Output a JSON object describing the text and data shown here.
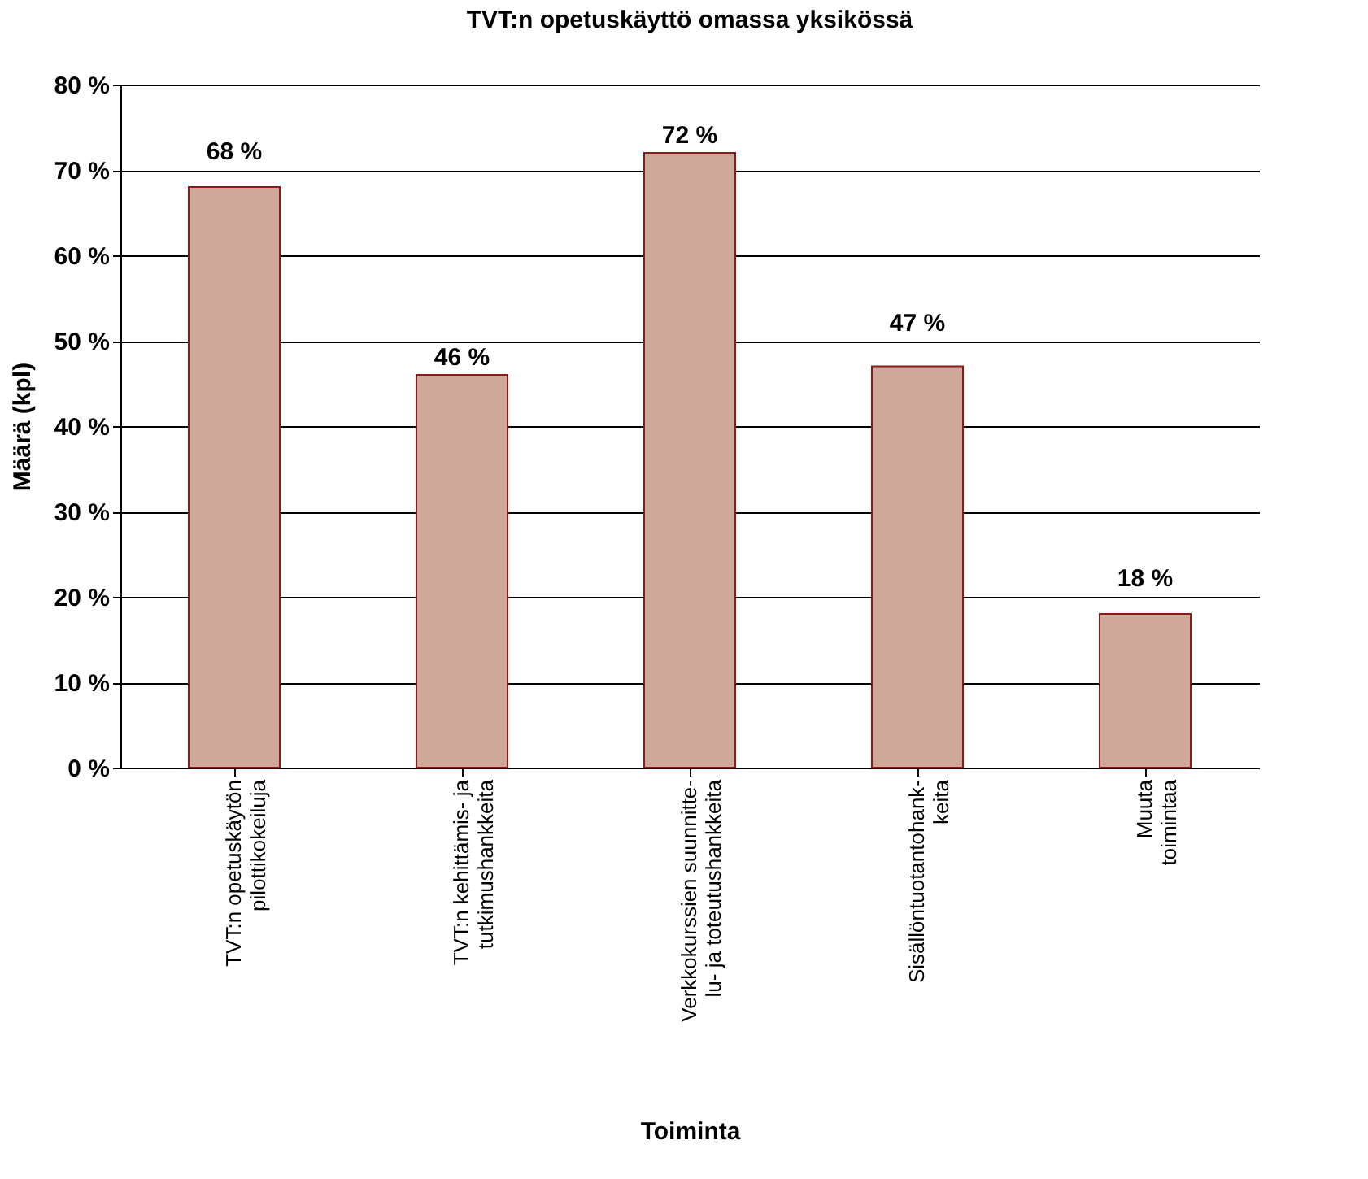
{
  "chart_data": {
    "type": "bar",
    "title": "TVT:n opetuskäyttö omassa yksikössä",
    "xlabel": "Toiminta",
    "ylabel": "Määrä (kpl)",
    "categories": [
      "TVT:n opetuskäytön\npilottikokeiluja",
      "TVT:n kehittämis- ja\ntutkimushankkeita",
      "Verkkokurssien suunnitte-\nlu- ja toteutushankkeita",
      "Sisällöntuotantohank-\nkeita",
      "Muuta\ntoimintaa"
    ],
    "values": [
      68,
      46,
      72,
      47,
      18
    ],
    "value_labels": [
      "68 %",
      "46 %",
      "72 %",
      "47 %",
      "18 %"
    ],
    "color": "#cfa89a",
    "ylim": [
      0,
      80
    ],
    "yticks": [
      {
        "value": 0,
        "label": "0 %"
      },
      {
        "value": 10,
        "label": "10 %"
      },
      {
        "value": 20,
        "label": "20 %"
      },
      {
        "value": 30,
        "label": "30 %"
      },
      {
        "value": 40,
        "label": "40 %"
      },
      {
        "value": 50,
        "label": "50 %"
      },
      {
        "value": 60,
        "label": "60 %"
      },
      {
        "value": 70,
        "label": "70 %"
      },
      {
        "value": 80,
        "label": "80 %"
      }
    ],
    "grid": "y"
  }
}
